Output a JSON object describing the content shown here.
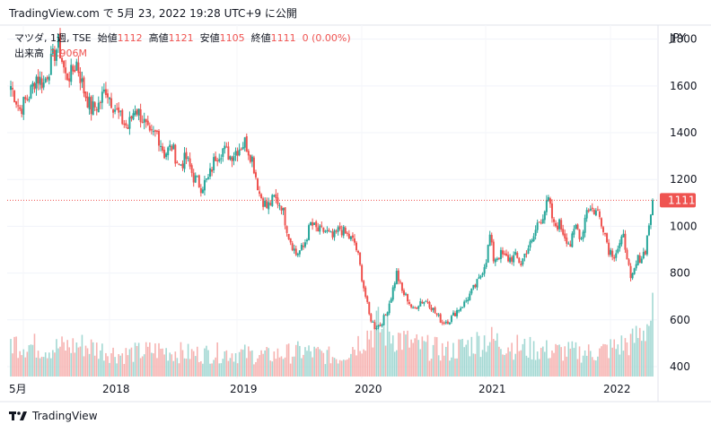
{
  "header": {
    "text": "TradingView.com で 5月 23, 2022 19:28 UTC+9 に公開"
  },
  "legend": {
    "symbol": "マツダ, 1週, TSE",
    "open_label": "始値",
    "open": "1112",
    "high_label": "高値",
    "high": "1121",
    "low_label": "安値",
    "low": "1105",
    "close_label": "終値",
    "close": "1111",
    "change": "0 (0.00%)",
    "volume_label": "出来高",
    "volume": "3.906M"
  },
  "footer": {
    "brand": "TradingView"
  },
  "colors": {
    "up": "#26a69a",
    "down": "#ef5350",
    "vol_up": "#a3d8d3",
    "vol_down": "#f6b3b1",
    "grid": "#f0f3fa",
    "text": "#131722",
    "axis_text": "#131722"
  },
  "chart_data": {
    "type": "candlestick",
    "interval": "1W",
    "currency": "JPY",
    "last_price": 1111,
    "y_ticks": [
      400,
      600,
      800,
      1000,
      1200,
      1400,
      1600,
      1800
    ],
    "x_ticks": [
      "5月",
      "2018",
      "2019",
      "2020",
      "2021",
      "2022"
    ],
    "ylim": [
      350,
      1860
    ],
    "price_line": 1111,
    "anchors": [
      [
        0,
        1600
      ],
      [
        5,
        1500
      ],
      [
        10,
        1560
      ],
      [
        14,
        1640
      ],
      [
        18,
        1610
      ],
      [
        22,
        1700
      ],
      [
        26,
        1780
      ],
      [
        30,
        1640
      ],
      [
        33,
        1650
      ],
      [
        36,
        1700
      ],
      [
        40,
        1580
      ],
      [
        44,
        1500
      ],
      [
        48,
        1520
      ],
      [
        52,
        1590
      ],
      [
        56,
        1520
      ],
      [
        60,
        1460
      ],
      [
        64,
        1420
      ],
      [
        68,
        1510
      ],
      [
        72,
        1460
      ],
      [
        76,
        1380
      ],
      [
        80,
        1400
      ],
      [
        84,
        1310
      ],
      [
        88,
        1340
      ],
      [
        92,
        1260
      ],
      [
        96,
        1290
      ],
      [
        100,
        1210
      ],
      [
        104,
        1170
      ],
      [
        108,
        1200
      ],
      [
        112,
        1300
      ],
      [
        116,
        1330
      ],
      [
        120,
        1300
      ],
      [
        124,
        1330
      ],
      [
        128,
        1360
      ],
      [
        132,
        1290
      ],
      [
        136,
        1140
      ],
      [
        140,
        1080
      ],
      [
        144,
        1120
      ],
      [
        148,
        1090
      ],
      [
        152,
        960
      ],
      [
        156,
        880
      ],
      [
        160,
        910
      ],
      [
        164,
        1010
      ],
      [
        168,
        980
      ],
      [
        172,
        980
      ],
      [
        176,
        950
      ],
      [
        180,
        990
      ],
      [
        184,
        960
      ],
      [
        188,
        930
      ],
      [
        190,
        870
      ],
      [
        193,
        740
      ],
      [
        196,
        620
      ],
      [
        199,
        570
      ],
      [
        202,
        580
      ],
      [
        205,
        620
      ],
      [
        208,
        700
      ],
      [
        211,
        800
      ],
      [
        214,
        720
      ],
      [
        217,
        690
      ],
      [
        220,
        640
      ],
      [
        224,
        680
      ],
      [
        228,
        680
      ],
      [
        232,
        630
      ],
      [
        236,
        590
      ],
      [
        240,
        600
      ],
      [
        244,
        640
      ],
      [
        248,
        670
      ],
      [
        252,
        720
      ],
      [
        256,
        770
      ],
      [
        260,
        860
      ],
      [
        262,
        960
      ],
      [
        264,
        860
      ],
      [
        268,
        880
      ],
      [
        272,
        860
      ],
      [
        276,
        870
      ],
      [
        279,
        840
      ],
      [
        282,
        900
      ],
      [
        285,
        930
      ],
      [
        288,
        1010
      ],
      [
        291,
        1050
      ],
      [
        294,
        1110
      ],
      [
        297,
        1000
      ],
      [
        300,
        1010
      ],
      [
        303,
        960
      ],
      [
        306,
        920
      ],
      [
        309,
        1000
      ],
      [
        312,
        950
      ],
      [
        315,
        1080
      ],
      [
        318,
        1070
      ],
      [
        321,
        1060
      ],
      [
        324,
        1000
      ],
      [
        327,
        900
      ],
      [
        330,
        880
      ],
      [
        333,
        920
      ],
      [
        335,
        950
      ],
      [
        337,
        880
      ],
      [
        339,
        760
      ],
      [
        341,
        810
      ],
      [
        343,
        860
      ],
      [
        345,
        870
      ],
      [
        347,
        900
      ],
      [
        349,
        1010
      ],
      [
        351,
        1110
      ]
    ],
    "volume_anchors": [
      [
        0,
        0.55
      ],
      [
        20,
        0.45
      ],
      [
        40,
        0.5
      ],
      [
        60,
        0.35
      ],
      [
        80,
        0.42
      ],
      [
        100,
        0.36
      ],
      [
        120,
        0.38
      ],
      [
        140,
        0.33
      ],
      [
        160,
        0.4
      ],
      [
        180,
        0.3
      ],
      [
        190,
        0.55
      ],
      [
        200,
        0.8
      ],
      [
        210,
        0.65
      ],
      [
        220,
        0.5
      ],
      [
        240,
        0.4
      ],
      [
        260,
        0.6
      ],
      [
        280,
        0.45
      ],
      [
        300,
        0.4
      ],
      [
        320,
        0.38
      ],
      [
        340,
        0.55
      ],
      [
        351,
        0.95
      ]
    ],
    "n_candles": 352
  }
}
